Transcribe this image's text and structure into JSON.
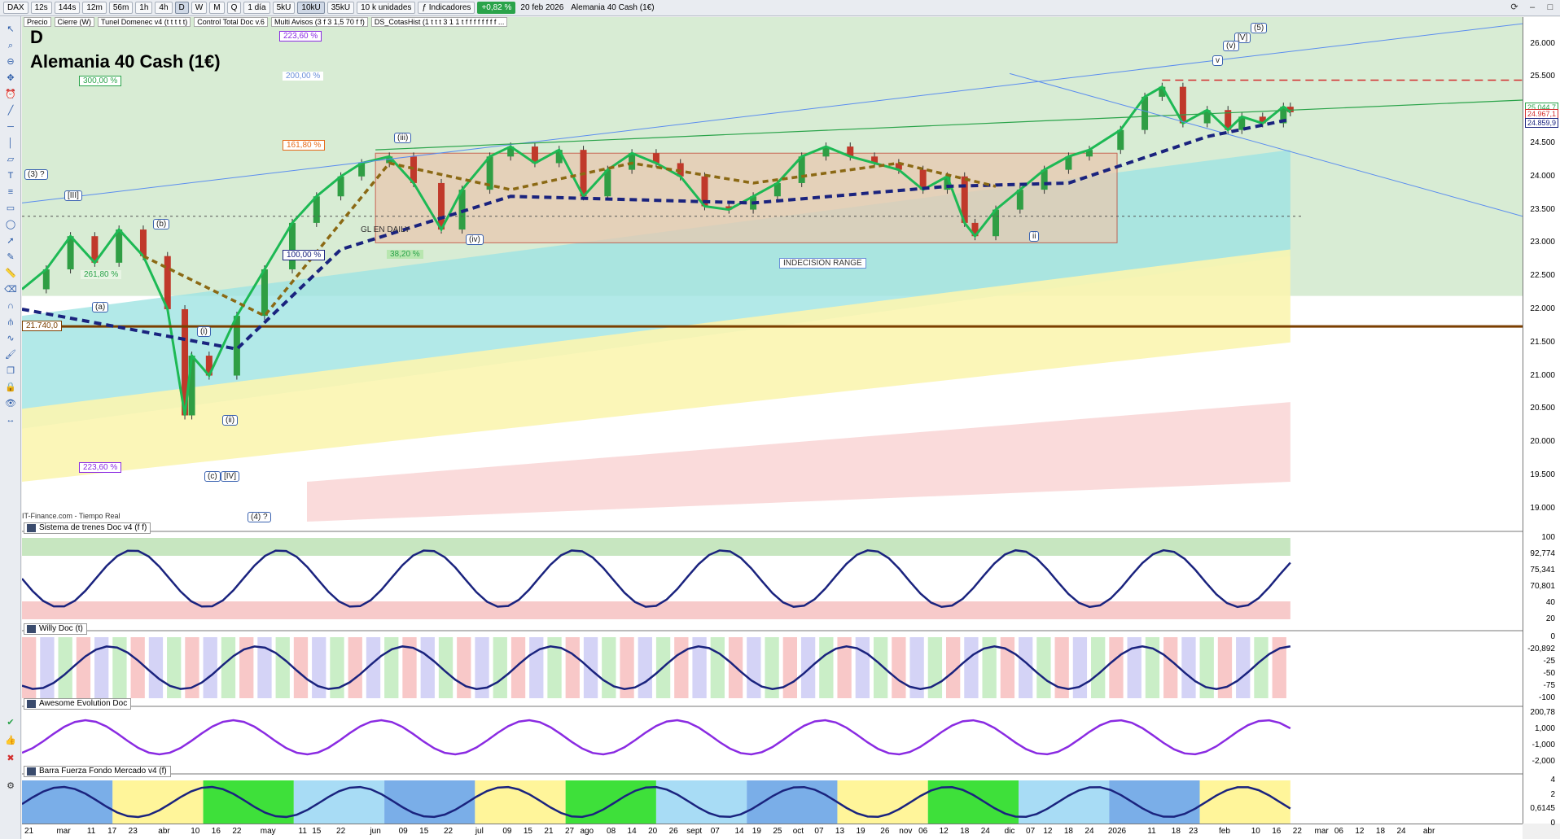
{
  "toolbar": {
    "symbol": "DAX",
    "timeframes": [
      "12s",
      "144s",
      "12m",
      "56m",
      "1h",
      "4h",
      "D",
      "W",
      "M",
      "Q"
    ],
    "active_timeframe": "D",
    "period": "1 día",
    "ticks": [
      "5kU",
      "10kU",
      "35kU"
    ],
    "active_tick": "10kU",
    "units": "10 k unidades",
    "indicators_label": "Indicadores",
    "change": "+0,82 %",
    "date": "20 feb 2026",
    "instrument": "Alemania 40 Cash (1€)",
    "change_color": "#2aa34a"
  },
  "legend": [
    {
      "label": "Precio"
    },
    {
      "label": "Cierre (W)"
    },
    {
      "label": "Tunel Domenec v4 (t t t t t)"
    },
    {
      "label": "Control Total Doc v.6"
    },
    {
      "label": "Multi Avisos (3 f 3 1,5 70 f f)"
    },
    {
      "label": "DS_CotasHist (1 t t t 3 1 1 t f f f f f f f f ..."
    }
  ],
  "main": {
    "letter": "D",
    "title": "Alemania 40 Cash (1€)",
    "source": "IT-Finance.com - Tiempo Real",
    "annotations": {
      "fib_223_top": "223,60 %",
      "fib_300": "300,00 %",
      "fib_200": "200,00 %",
      "fib_161": "161,80 %",
      "fib_261": "261,80 %",
      "fib_100": "100,00 %",
      "fib_38": "38,20 %",
      "fib_223_low": "223,60 %",
      "level_21740": "21.740,0",
      "gl_en_daily": "GL EN DAILY",
      "indecision": "INDECISION RANGE",
      "wave_3q": "(3) ?",
      "wave_III": "[III]",
      "wave_b": "(b)",
      "wave_a": "(a)",
      "wave_i": "(i)",
      "wave_ii": "(ii)",
      "wave_c": "(c)",
      "wave_IV": "[IV]",
      "wave_4q": "(4) ?",
      "wave_iii": "(iii)",
      "wave_iv": "(iv)",
      "wave_5": "(5)",
      "wave_V": "[V]",
      "wave_v_paren": "(v)",
      "wave_v": "v",
      "wave_ii_small": "ii"
    },
    "price_tags": [
      "25.044,7",
      "24.967,1",
      "24.859,9"
    ],
    "axis_ticks": [
      "26.000",
      "25.500",
      "25.000",
      "24.500",
      "24.000",
      "23.500",
      "23.000",
      "22.500",
      "22.000",
      "21.500",
      "21.000",
      "20.500",
      "20.000",
      "19.500",
      "19.000"
    ],
    "x_domain": {
      "start": "2025-02-19",
      "end": "2026-04-28"
    },
    "series": {
      "name": "Alemania 40 Cash (1€)",
      "dates": [
        "2025-02-19",
        "2025-02-26",
        "2025-03-05",
        "2025-03-12",
        "2025-03-19",
        "2025-03-26",
        "2025-04-02",
        "2025-04-07",
        "2025-04-09",
        "2025-04-14",
        "2025-04-22",
        "2025-04-30",
        "2025-05-08",
        "2025-05-15",
        "2025-05-22",
        "2025-05-28",
        "2025-06-05",
        "2025-06-12",
        "2025-06-20",
        "2025-06-26",
        "2025-07-04",
        "2025-07-10",
        "2025-07-17",
        "2025-07-24",
        "2025-07-31",
        "2025-08-07",
        "2025-08-14",
        "2025-08-21",
        "2025-08-28",
        "2025-09-04",
        "2025-09-11",
        "2025-09-18",
        "2025-09-25",
        "2025-10-02",
        "2025-10-09",
        "2025-10-16",
        "2025-10-23",
        "2025-10-30",
        "2025-11-06",
        "2025-11-13",
        "2025-11-18",
        "2025-11-21",
        "2025-11-27",
        "2025-12-04",
        "2025-12-11",
        "2025-12-18",
        "2025-12-24",
        "2026-01-02",
        "2026-01-09",
        "2026-01-14",
        "2026-01-20",
        "2026-01-27",
        "2026-02-02",
        "2026-02-06",
        "2026-02-12",
        "2026-02-18",
        "2026-02-20"
      ],
      "close": [
        22300,
        22600,
        23100,
        22700,
        23200,
        22800,
        22000,
        20400,
        21300,
        21000,
        21900,
        22600,
        23300,
        23700,
        24000,
        24200,
        24300,
        23900,
        23200,
        23800,
        24300,
        24450,
        24200,
        24400,
        23700,
        24100,
        24350,
        24200,
        24000,
        23550,
        23500,
        23700,
        23900,
        24300,
        24450,
        24300,
        24200,
        24100,
        23800,
        24000,
        23300,
        23100,
        23500,
        23800,
        24100,
        24300,
        24400,
        24700,
        25200,
        25350,
        24800,
        25000,
        24700,
        24900,
        24800,
        25050,
        24967
      ]
    }
  },
  "panels": [
    {
      "title": "Sistema de trenes Doc v4 (f f)",
      "axis": [
        "100",
        "92,774",
        "75,341",
        "70,801",
        "40",
        "20"
      ]
    },
    {
      "title": "Willy Doc (t)",
      "axis": [
        "0",
        "-20,892",
        "-25",
        "-50",
        "-75",
        "-100"
      ]
    },
    {
      "title": "Awesome Evolution Doc",
      "axis": [
        "200,78",
        "1,000",
        "-1,000",
        "-2,000"
      ]
    },
    {
      "title": "Barra Fuerza Fondo Mercado v4 (f)",
      "axis": [
        "4",
        "2",
        "0,6145",
        "0"
      ]
    }
  ],
  "date_axis": [
    {
      "label": "21",
      "date": "2025-02-21"
    },
    {
      "label": "mar",
      "date": "2025-03-03"
    },
    {
      "label": "11",
      "date": "2025-03-11"
    },
    {
      "label": "17",
      "date": "2025-03-17"
    },
    {
      "label": "23",
      "date": "2025-03-23"
    },
    {
      "label": "abr",
      "date": "2025-04-01"
    },
    {
      "label": "10",
      "date": "2025-04-10"
    },
    {
      "label": "16",
      "date": "2025-04-16"
    },
    {
      "label": "22",
      "date": "2025-04-22"
    },
    {
      "label": "may",
      "date": "2025-05-01"
    },
    {
      "label": "11",
      "date": "2025-05-11"
    },
    {
      "label": "15",
      "date": "2025-05-15"
    },
    {
      "label": "22",
      "date": "2025-05-22"
    },
    {
      "label": "jun",
      "date": "2025-06-01"
    },
    {
      "label": "09",
      "date": "2025-06-09"
    },
    {
      "label": "15",
      "date": "2025-06-15"
    },
    {
      "label": "22",
      "date": "2025-06-22"
    },
    {
      "label": "jul",
      "date": "2025-07-01"
    },
    {
      "label": "09",
      "date": "2025-07-09"
    },
    {
      "label": "15",
      "date": "2025-07-15"
    },
    {
      "label": "21",
      "date": "2025-07-21"
    },
    {
      "label": "27",
      "date": "2025-07-27"
    },
    {
      "label": "ago",
      "date": "2025-08-01"
    },
    {
      "label": "08",
      "date": "2025-08-08"
    },
    {
      "label": "14",
      "date": "2025-08-14"
    },
    {
      "label": "20",
      "date": "2025-08-20"
    },
    {
      "label": "26",
      "date": "2025-08-26"
    },
    {
      "label": "sept",
      "date": "2025-09-01"
    },
    {
      "label": "07",
      "date": "2025-09-07"
    },
    {
      "label": "14",
      "date": "2025-09-14"
    },
    {
      "label": "19",
      "date": "2025-09-19"
    },
    {
      "label": "25",
      "date": "2025-09-25"
    },
    {
      "label": "oct",
      "date": "2025-10-01"
    },
    {
      "label": "07",
      "date": "2025-10-07"
    },
    {
      "label": "13",
      "date": "2025-10-13"
    },
    {
      "label": "19",
      "date": "2025-10-19"
    },
    {
      "label": "26",
      "date": "2025-10-26"
    },
    {
      "label": "nov",
      "date": "2025-11-01"
    },
    {
      "label": "06",
      "date": "2025-11-06"
    },
    {
      "label": "12",
      "date": "2025-11-12"
    },
    {
      "label": "18",
      "date": "2025-11-18"
    },
    {
      "label": "24",
      "date": "2025-11-24"
    },
    {
      "label": "dic",
      "date": "2025-12-01"
    },
    {
      "label": "07",
      "date": "2025-12-07"
    },
    {
      "label": "12",
      "date": "2025-12-12"
    },
    {
      "label": "18",
      "date": "2025-12-18"
    },
    {
      "label": "24",
      "date": "2025-12-24"
    },
    {
      "label": "2026",
      "date": "2026-01-01"
    },
    {
      "label": "11",
      "date": "2026-01-11"
    },
    {
      "label": "18",
      "date": "2026-01-18"
    },
    {
      "label": "23",
      "date": "2026-01-23"
    },
    {
      "label": "feb",
      "date": "2026-02-01"
    },
    {
      "label": "10",
      "date": "2026-02-10"
    },
    {
      "label": "16",
      "date": "2026-02-16"
    },
    {
      "label": "22",
      "date": "2026-02-22"
    },
    {
      "label": "mar",
      "date": "2026-03-01"
    },
    {
      "label": "06",
      "date": "2026-03-06"
    },
    {
      "label": "12",
      "date": "2026-03-12"
    },
    {
      "label": "18",
      "date": "2026-03-18"
    },
    {
      "label": "24",
      "date": "2026-03-24"
    },
    {
      "label": "abr",
      "date": "2026-04-01"
    }
  ],
  "colors": {
    "bull_candle": "#2f9e44",
    "bear_candle": "#c0392b",
    "green_zone": "#d8ecd4",
    "range_box": "#e8c9b0",
    "cyan_band": "#9fe4e2",
    "yellow_band": "#fbf5b0",
    "pink_band": "#f9d7d7",
    "support_line": "#7b3f00",
    "dashed_navy": "#1a237e",
    "green_ma": "#1db954",
    "brown_dash": "#8b6914"
  }
}
